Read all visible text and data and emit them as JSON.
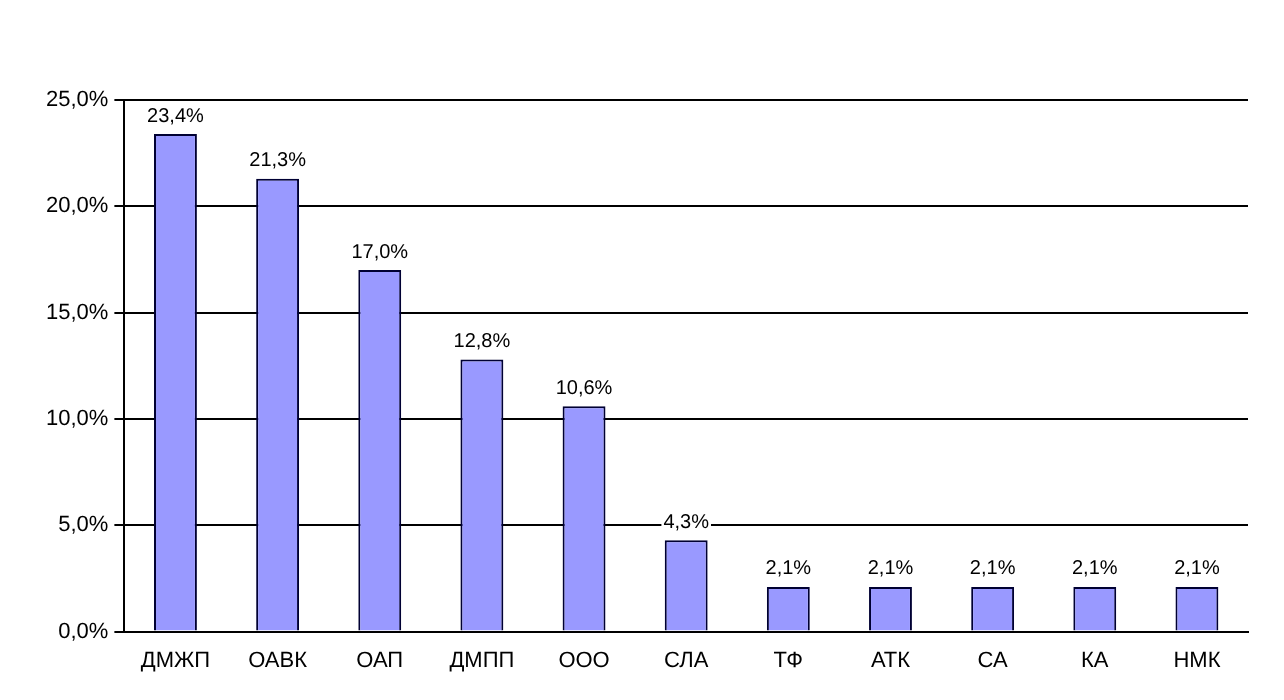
{
  "chart_data": {
    "type": "bar",
    "categories": [
      "ДМЖП",
      "ОАВК",
      "ОАП",
      "ДМПП",
      "ООО",
      "СЛА",
      "ТФ",
      "АТК",
      "СА",
      "КА",
      "НМК"
    ],
    "values": [
      23.4,
      21.3,
      17.0,
      12.8,
      10.6,
      4.3,
      2.1,
      2.1,
      2.1,
      2.1,
      2.1
    ],
    "value_labels": [
      "23,4%",
      "21,3%",
      "17,0%",
      "12,8%",
      "10,6%",
      "4,3%",
      "2,1%",
      "2,1%",
      "2,1%",
      "2,1%",
      "2,1%"
    ],
    "color": "#9999ff",
    "ylim": [
      0,
      25
    ],
    "yticks": [
      {
        "value": 0,
        "label": "0,0%"
      },
      {
        "value": 5,
        "label": "5,0%"
      },
      {
        "value": 10,
        "label": "10,0%"
      },
      {
        "value": 15,
        "label": "15,0%"
      },
      {
        "value": 20,
        "label": "20,0%"
      },
      {
        "value": 25,
        "label": "25,0%"
      }
    ],
    "grid": "y",
    "legend": false
  }
}
